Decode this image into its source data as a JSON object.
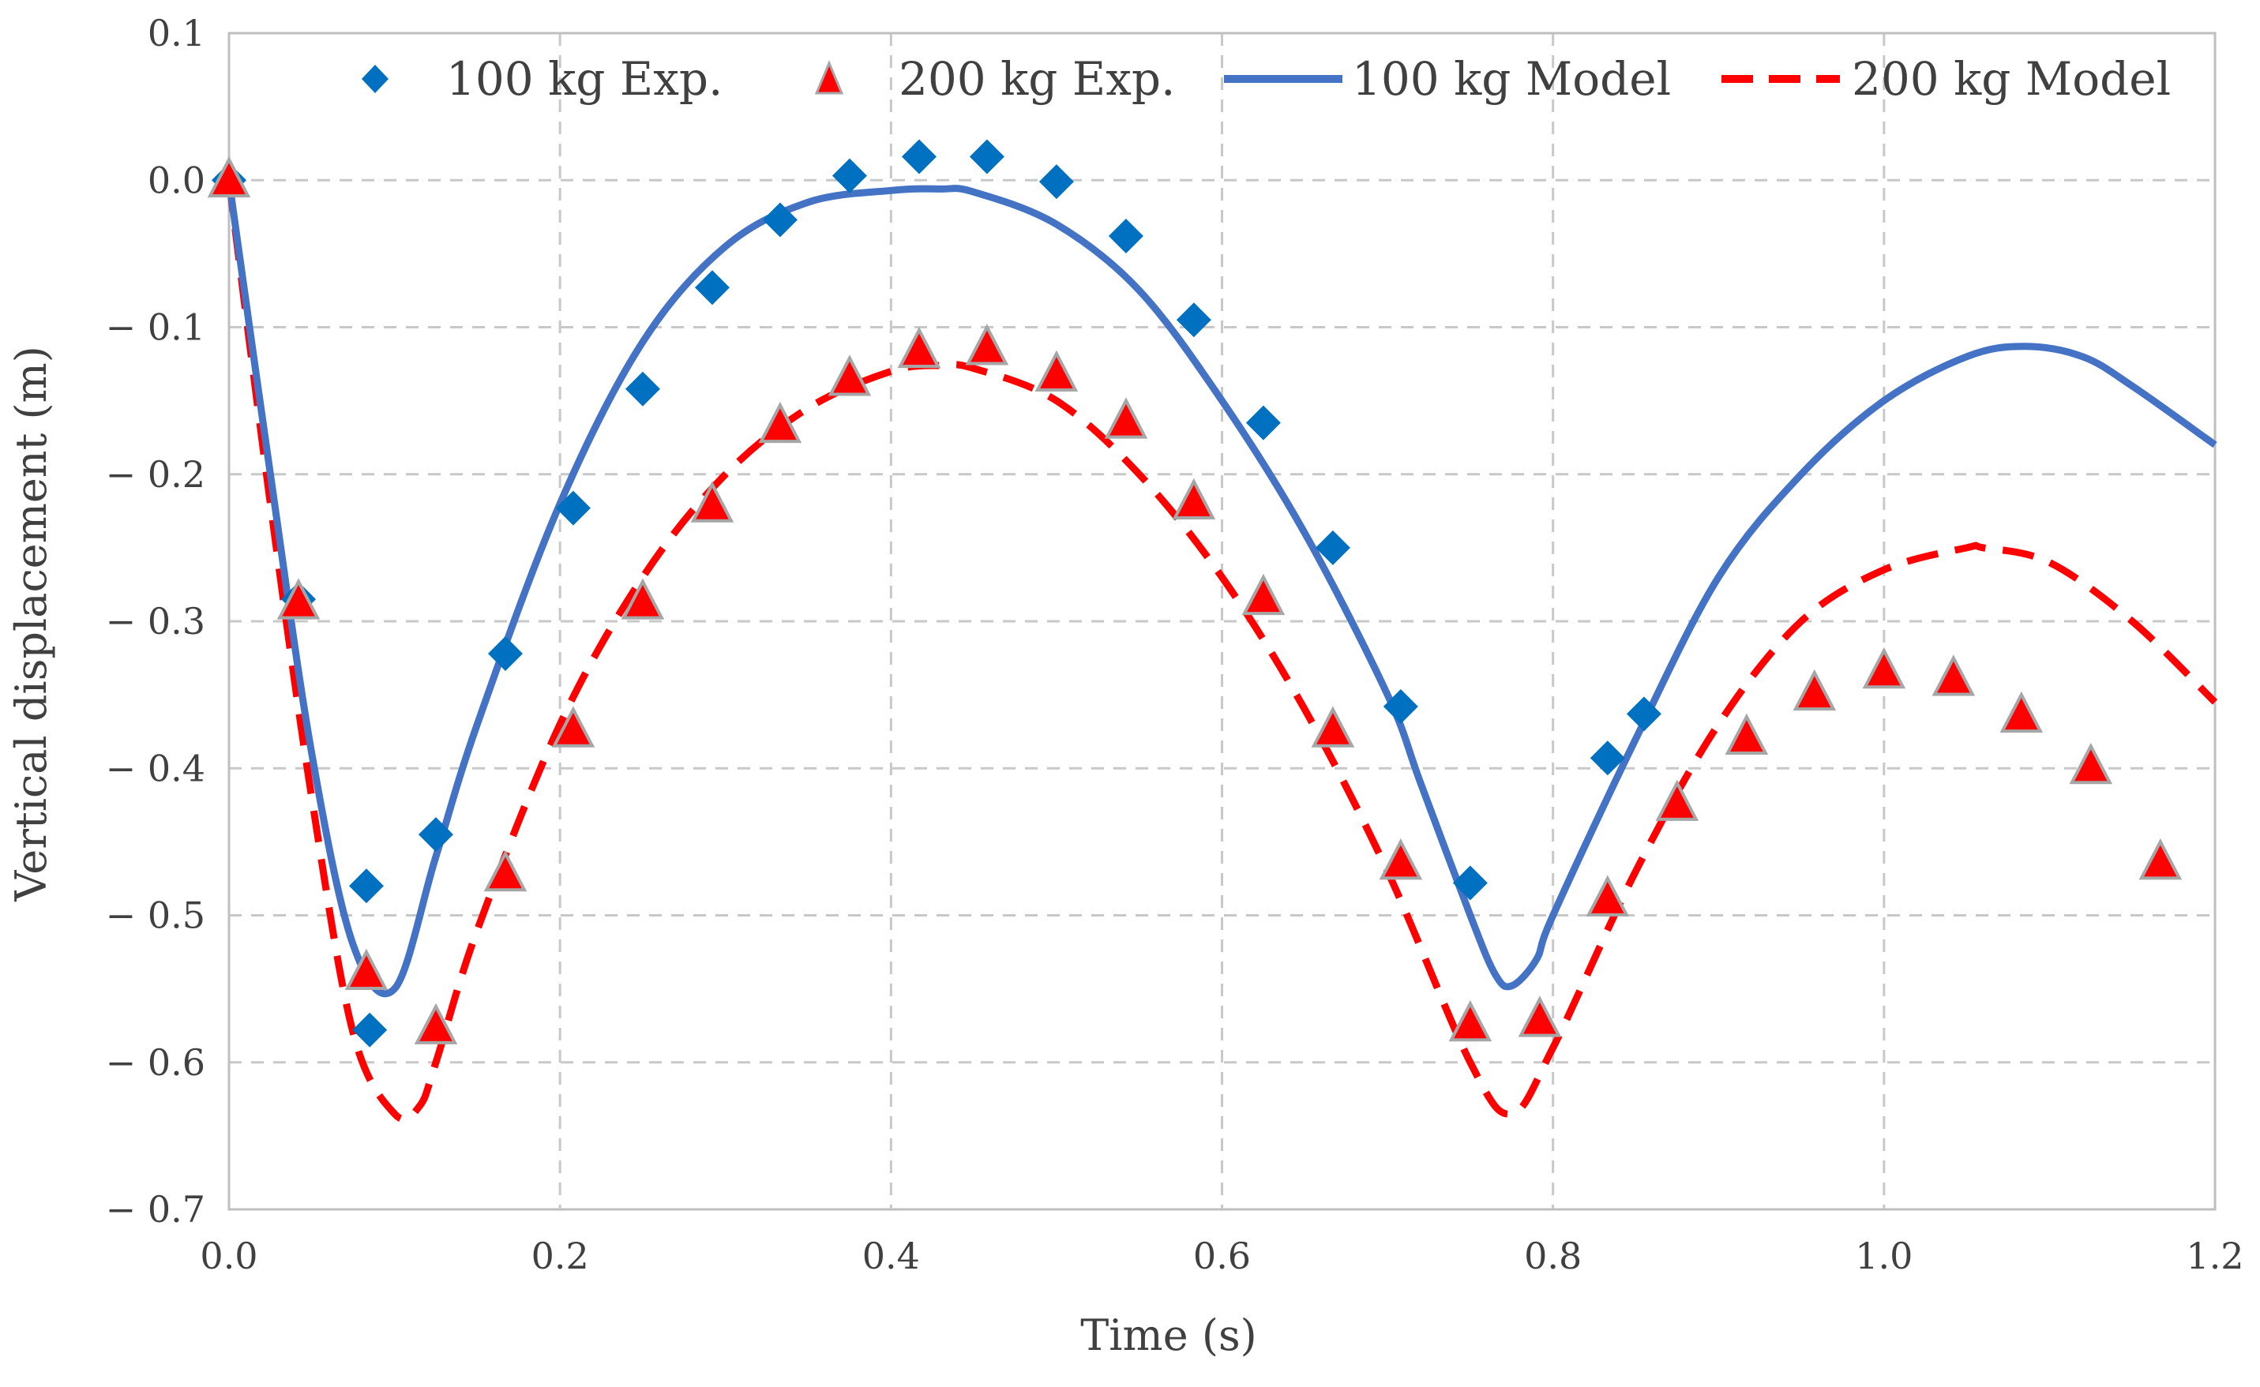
{
  "chart_data": {
    "type": "line+scatter",
    "title": "",
    "xlabel": "Time (s)",
    "ylabel": "Vertical displacement (m)",
    "xlim": [
      0.0,
      1.2
    ],
    "ylim": [
      -0.7,
      0.1
    ],
    "x_ticks": [
      0.0,
      0.2,
      0.4,
      0.6,
      0.8,
      1.0,
      1.2
    ],
    "x_tick_labels": [
      "0.0",
      "0.2",
      "0.4",
      "0.6",
      "0.8",
      "1.0",
      "1.2"
    ],
    "y_ticks": [
      0.1,
      0.0,
      -0.1,
      -0.2,
      -0.3,
      -0.4,
      -0.5,
      -0.6,
      -0.7
    ],
    "y_tick_labels": [
      "0.1",
      "0.0",
      "− 0.1",
      "− 0.2",
      "− 0.3",
      "− 0.4",
      "− 0.5",
      "− 0.6",
      "− 0.7"
    ],
    "grid": true,
    "legend_position": "top",
    "colors": {
      "blue": "#4472C4",
      "red": "#FF0000",
      "marker_edge": "#A6A6A6"
    },
    "series": [
      {
        "name": "100 kg Exp.",
        "kind": "scatter",
        "marker": "diamond",
        "color": "#0070C0",
        "x": [
          0.0,
          0.042,
          0.083,
          0.085,
          0.125,
          0.167,
          0.208,
          0.25,
          0.292,
          0.333,
          0.375,
          0.417,
          0.458,
          0.5,
          0.542,
          0.583,
          0.625,
          0.667,
          0.708,
          0.75,
          0.833,
          0.855
        ],
        "y": [
          0.0,
          -0.285,
          -0.48,
          -0.578,
          -0.445,
          -0.322,
          -0.223,
          -0.142,
          -0.073,
          -0.027,
          0.003,
          0.016,
          0.016,
          -0.001,
          -0.038,
          -0.095,
          -0.165,
          -0.25,
          -0.358,
          -0.478,
          -0.393,
          -0.363
        ]
      },
      {
        "name": "200 kg Exp.",
        "kind": "scatter",
        "marker": "triangle",
        "color": "#FF0000",
        "x": [
          0.0,
          0.042,
          0.083,
          0.125,
          0.167,
          0.208,
          0.25,
          0.292,
          0.333,
          0.375,
          0.417,
          0.458,
          0.5,
          0.542,
          0.583,
          0.625,
          0.667,
          0.708,
          0.75,
          0.792,
          0.833,
          0.875,
          0.917,
          0.958,
          1.0,
          1.042,
          1.083,
          1.125,
          1.167
        ],
        "y": [
          -0.001,
          -0.288,
          -0.54,
          -0.577,
          -0.473,
          -0.375,
          -0.288,
          -0.222,
          -0.168,
          -0.136,
          -0.117,
          -0.115,
          -0.133,
          -0.165,
          -0.22,
          -0.285,
          -0.375,
          -0.465,
          -0.575,
          -0.572,
          -0.49,
          -0.425,
          -0.38,
          -0.35,
          -0.335,
          -0.34,
          -0.365,
          -0.4,
          -0.465
        ]
      },
      {
        "name": "100 kg Model",
        "kind": "line",
        "style": "solid",
        "color": "#4472C4",
        "x": [
          0.0,
          0.025,
          0.05,
          0.075,
          0.1,
          0.125,
          0.15,
          0.2,
          0.25,
          0.3,
          0.35,
          0.4,
          0.43,
          0.45,
          0.5,
          0.55,
          0.6,
          0.65,
          0.7,
          0.72,
          0.75,
          0.765,
          0.775,
          0.79,
          0.8,
          0.85,
          0.9,
          0.95,
          1.0,
          1.05,
          1.085,
          1.12,
          1.15,
          1.2
        ],
        "y": [
          0.0,
          -0.2,
          -0.39,
          -0.52,
          -0.55,
          -0.46,
          -0.37,
          -0.22,
          -0.11,
          -0.045,
          -0.015,
          -0.007,
          -0.006,
          -0.008,
          -0.03,
          -0.075,
          -0.15,
          -0.24,
          -0.35,
          -0.41,
          -0.5,
          -0.54,
          -0.548,
          -0.53,
          -0.5,
          -0.38,
          -0.27,
          -0.2,
          -0.15,
          -0.12,
          -0.113,
          -0.12,
          -0.14,
          -0.18
        ]
      },
      {
        "name": "200 kg Model",
        "kind": "line",
        "style": "dashed",
        "color": "#FF0000",
        "x": [
          0.0,
          0.025,
          0.05,
          0.075,
          0.1,
          0.115,
          0.125,
          0.15,
          0.2,
          0.25,
          0.3,
          0.35,
          0.4,
          0.43,
          0.45,
          0.5,
          0.55,
          0.6,
          0.65,
          0.7,
          0.75,
          0.775,
          0.8,
          0.85,
          0.9,
          0.95,
          1.0,
          1.05,
          1.06,
          1.1,
          1.15,
          1.2
        ],
        "y": [
          0.0,
          -0.22,
          -0.42,
          -0.58,
          -0.635,
          -0.63,
          -0.6,
          -0.51,
          -0.37,
          -0.27,
          -0.2,
          -0.155,
          -0.13,
          -0.126,
          -0.128,
          -0.15,
          -0.2,
          -0.27,
          -0.36,
          -0.47,
          -0.6,
          -0.635,
          -0.59,
          -0.47,
          -0.37,
          -0.3,
          -0.265,
          -0.25,
          -0.25,
          -0.26,
          -0.3,
          -0.355
        ]
      }
    ]
  }
}
